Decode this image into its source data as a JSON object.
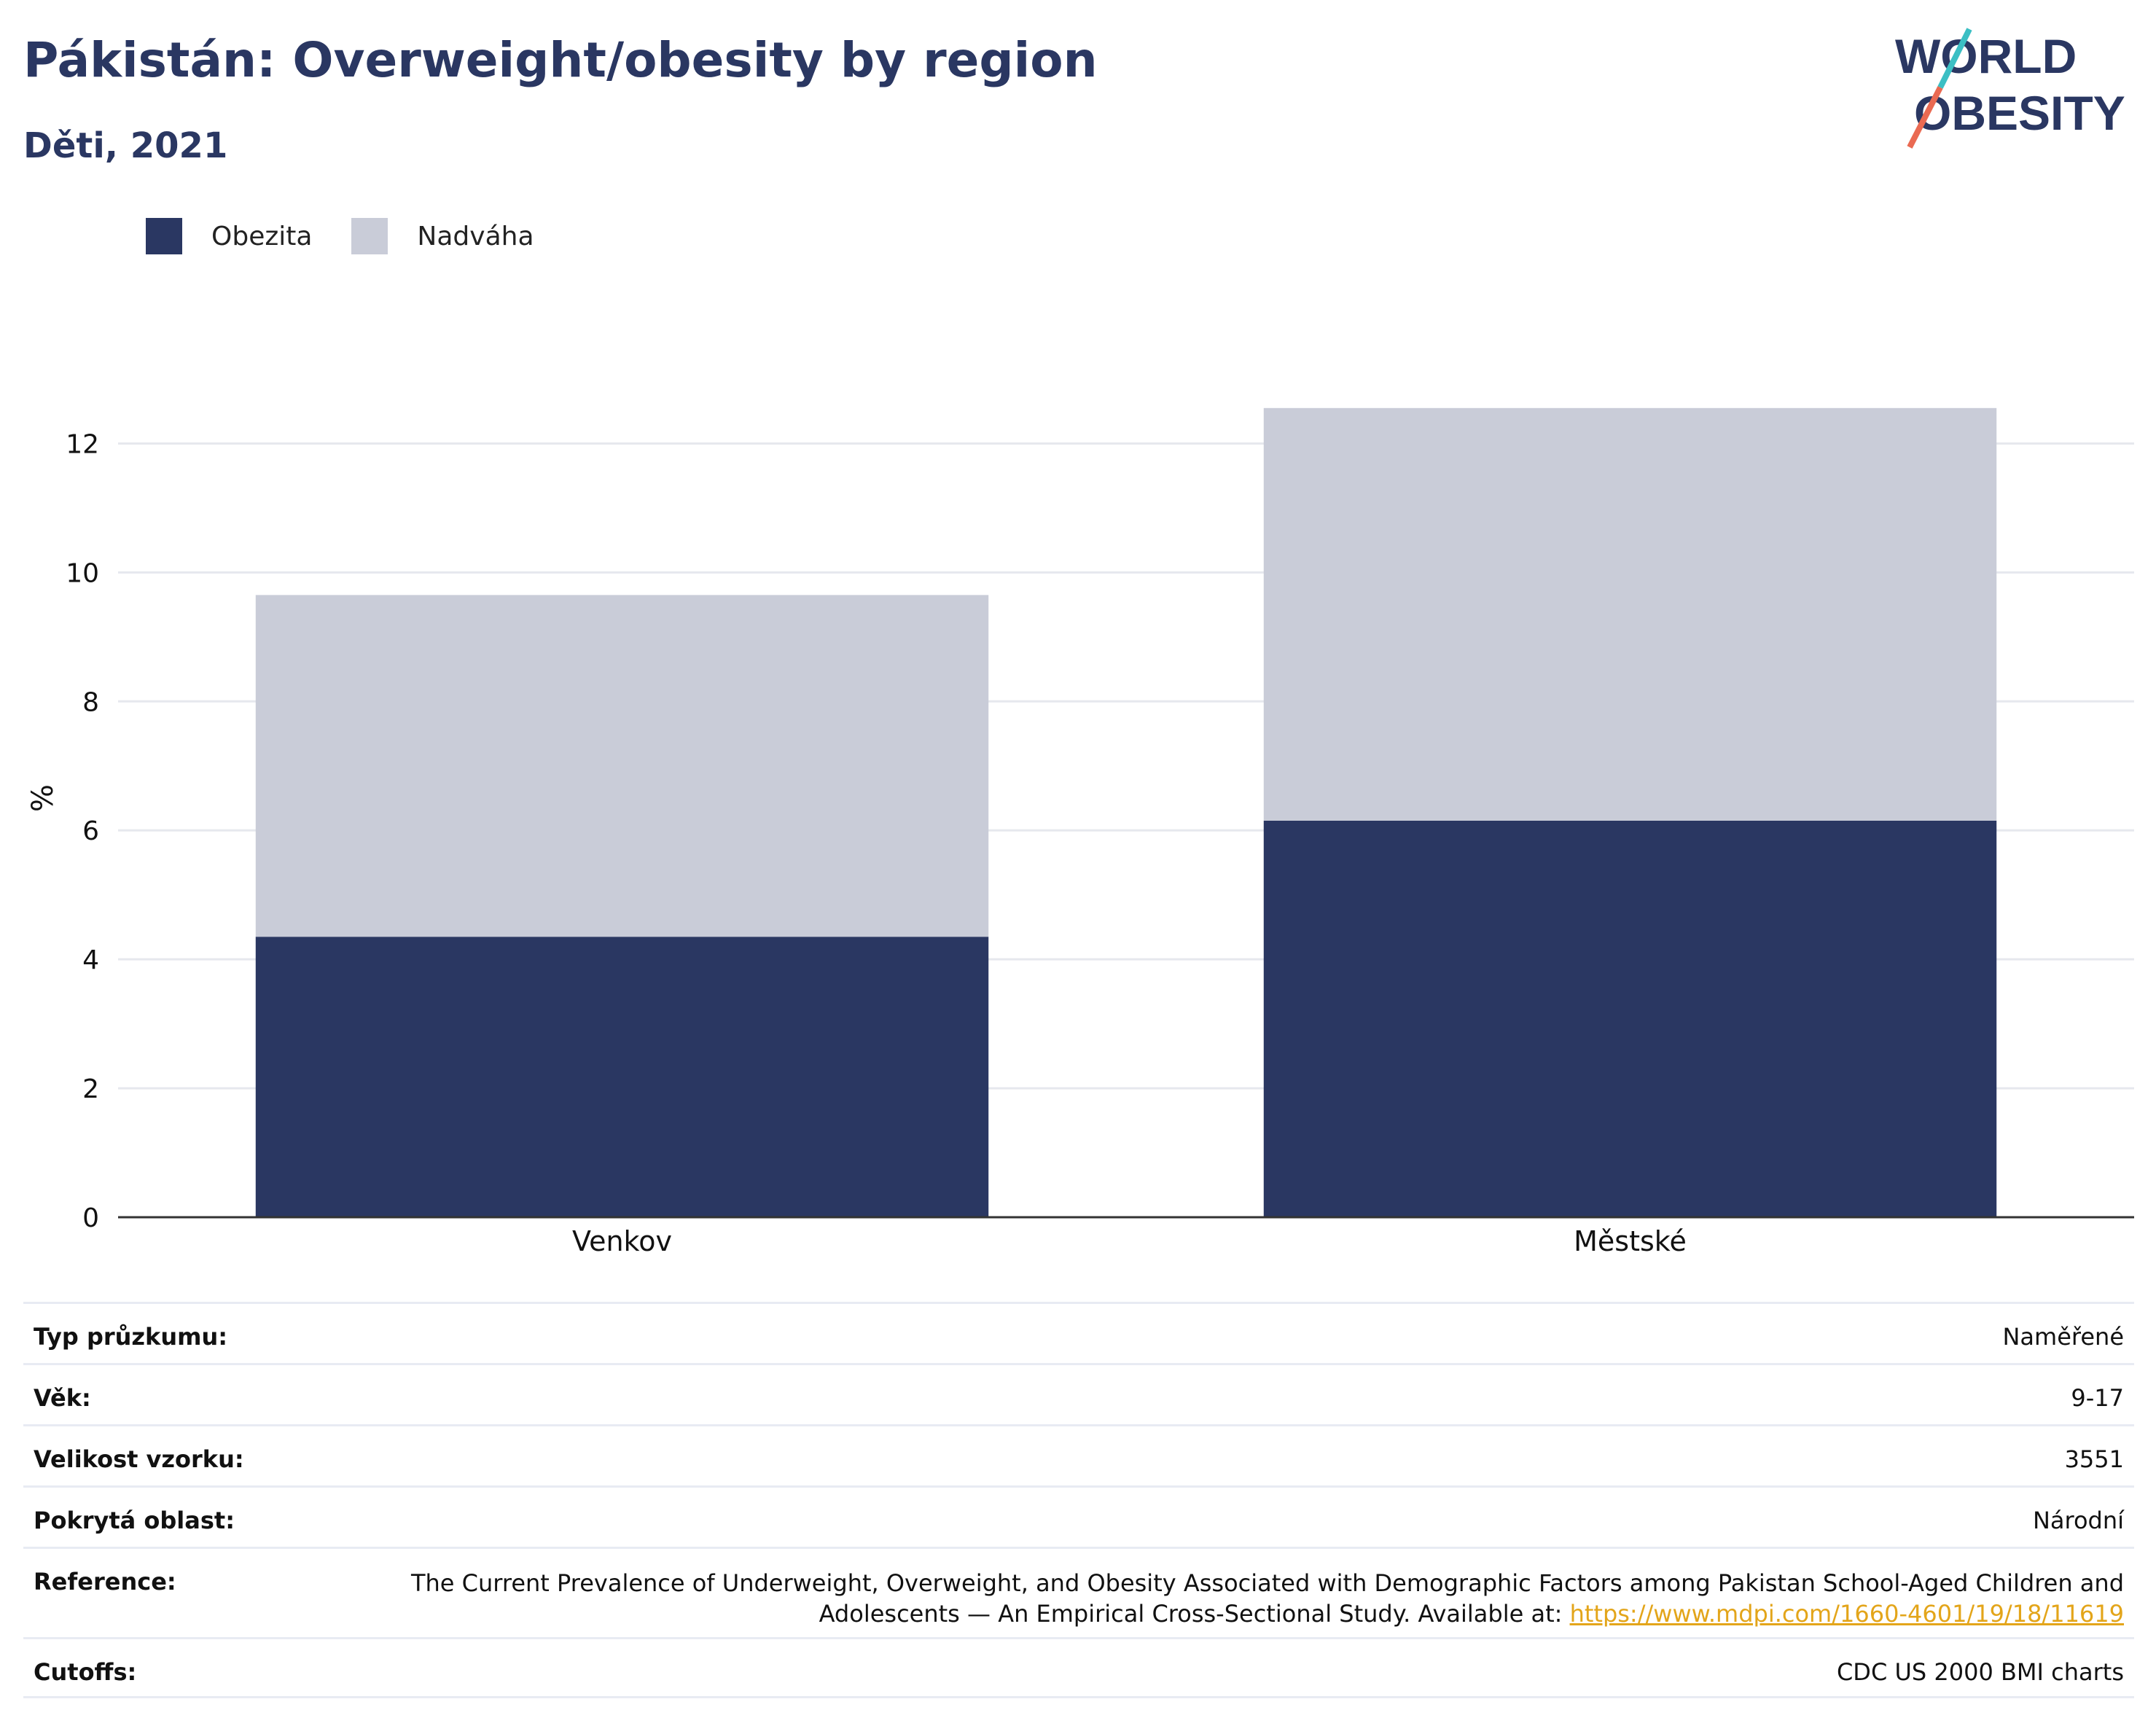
{
  "header": {
    "title": "Pákistán: Overweight/obesity by region",
    "subtitle": "Děti, 2021"
  },
  "logo": {
    "line1": "WORLD",
    "line2": "OBESITY",
    "colors": {
      "text": "#2a3762",
      "slash_top": "#3bbfc4",
      "slash_bottom": "#ea6a52"
    }
  },
  "legend": {
    "items": [
      {
        "label": "Obezita",
        "color": "#2a3762"
      },
      {
        "label": "Nadváha",
        "color": "#c9ccd8"
      }
    ]
  },
  "chart_data": {
    "type": "bar",
    "stacked": true,
    "categories": [
      "Venkov",
      "Městské"
    ],
    "series": [
      {
        "name": "Obezita",
        "color": "#2a3762",
        "values": [
          4.35,
          6.15
        ]
      },
      {
        "name": "Nadváha",
        "color": "#c9ccd8",
        "values": [
          5.3,
          6.4
        ]
      }
    ],
    "ylabel": "%",
    "ylim": [
      0,
      13
    ],
    "yticks": [
      0,
      2,
      4,
      6,
      8,
      10,
      12
    ],
    "grid": true,
    "legend_position": "top-left"
  },
  "meta": {
    "rows": [
      {
        "key": "Typ průzkumu:",
        "value": "Naměřené"
      },
      {
        "key": "Věk:",
        "value": "9-17"
      },
      {
        "key": "Velikost vzorku:",
        "value": "3551"
      },
      {
        "key": "Pokrytá oblast:",
        "value": "Národní"
      }
    ],
    "reference": {
      "key": "Reference:",
      "text": "The Current Prevalence of Underweight, Overweight, and Obesity Associated with Demographic Factors among Pakistan School-Aged Children and Adolescents — An Empirical Cross-Sectional Study. Available at: ",
      "link": "https://www.mdpi.com/1660-4601/19/18/11619"
    },
    "cutoffs": {
      "key": "Cutoffs:",
      "value": "CDC US 2000 BMI charts"
    }
  }
}
